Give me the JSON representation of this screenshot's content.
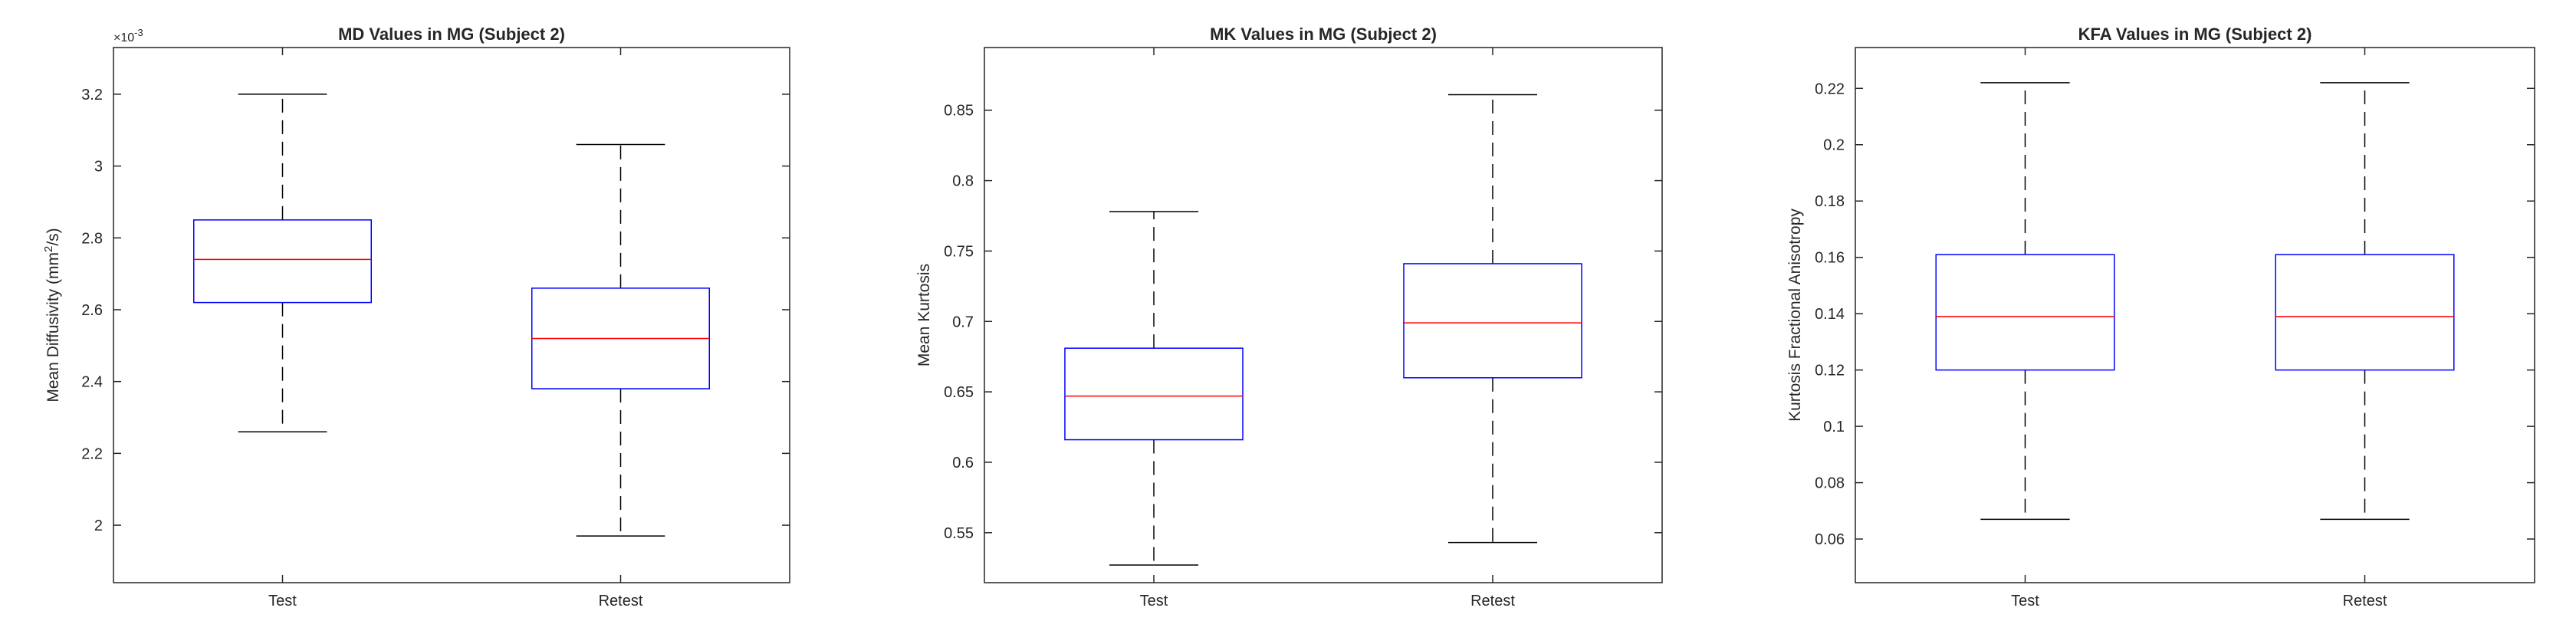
{
  "chart_data": [
    {
      "type": "box",
      "title": "MD Values in MG (Subject 2)",
      "xlabel": "",
      "ylabel": "Mean Diffusivity (mm",
      "ylabel_sup": "2",
      "ylabel_end": "/s)",
      "y_scale_exponent": "×10",
      "y_scale_exponent_power": "-3",
      "ylim": [
        1.84,
        3.33
      ],
      "yticks": [
        2,
        2.2,
        2.4,
        2.6,
        2.8,
        3,
        3.2
      ],
      "ytick_labels": [
        "2",
        "2.2",
        "2.4",
        "2.6",
        "2.8",
        "3",
        "3.2"
      ],
      "categories": [
        "Test",
        "Retest"
      ],
      "boxes": [
        {
          "whisker_low": 2.26,
          "q1": 2.62,
          "median": 2.74,
          "q3": 2.85,
          "whisker_high": 3.2
        },
        {
          "whisker_low": 1.97,
          "q1": 2.38,
          "median": 2.52,
          "q3": 2.66,
          "whisker_high": 3.06
        }
      ],
      "grid": false
    },
    {
      "type": "box",
      "title": "MK Values in MG (Subject 2)",
      "xlabel": "",
      "ylabel": "Mean Kurtosis",
      "ylim": [
        0.5145,
        0.8945
      ],
      "yticks": [
        0.55,
        0.6,
        0.65,
        0.7,
        0.75,
        0.8,
        0.85
      ],
      "ytick_labels": [
        "0.55",
        "0.6",
        "0.65",
        "0.7",
        "0.75",
        "0.8",
        "0.85"
      ],
      "categories": [
        "Test",
        "Retest"
      ],
      "boxes": [
        {
          "whisker_low": 0.527,
          "q1": 0.616,
          "median": 0.647,
          "q3": 0.681,
          "whisker_high": 0.778
        },
        {
          "whisker_low": 0.543,
          "q1": 0.66,
          "median": 0.699,
          "q3": 0.741,
          "whisker_high": 0.861
        }
      ],
      "grid": false
    },
    {
      "type": "box",
      "title": "KFA Values in MG (Subject 2)",
      "xlabel": "",
      "ylabel": "Kurtosis Fractional Anisotropy",
      "ylim": [
        0.0445,
        0.2345
      ],
      "yticks": [
        0.06,
        0.08,
        0.1,
        0.12,
        0.14,
        0.16,
        0.18,
        0.2,
        0.22
      ],
      "ytick_labels": [
        "0.06",
        "0.08",
        "0.1",
        "0.12",
        "0.14",
        "0.16",
        "0.18",
        "0.2",
        "0.22"
      ],
      "categories": [
        "Test",
        "Retest"
      ],
      "boxes": [
        {
          "whisker_low": 0.067,
          "q1": 0.12,
          "median": 0.139,
          "q3": 0.161,
          "whisker_high": 0.222
        },
        {
          "whisker_low": 0.067,
          "q1": 0.12,
          "median": 0.139,
          "q3": 0.161,
          "whisker_high": 0.222
        }
      ],
      "grid": false
    }
  ],
  "colors": {
    "box": "#0000ff",
    "median": "#ff0000",
    "whisker": "#000000",
    "axis": "#262626",
    "background": "#ffffff"
  }
}
